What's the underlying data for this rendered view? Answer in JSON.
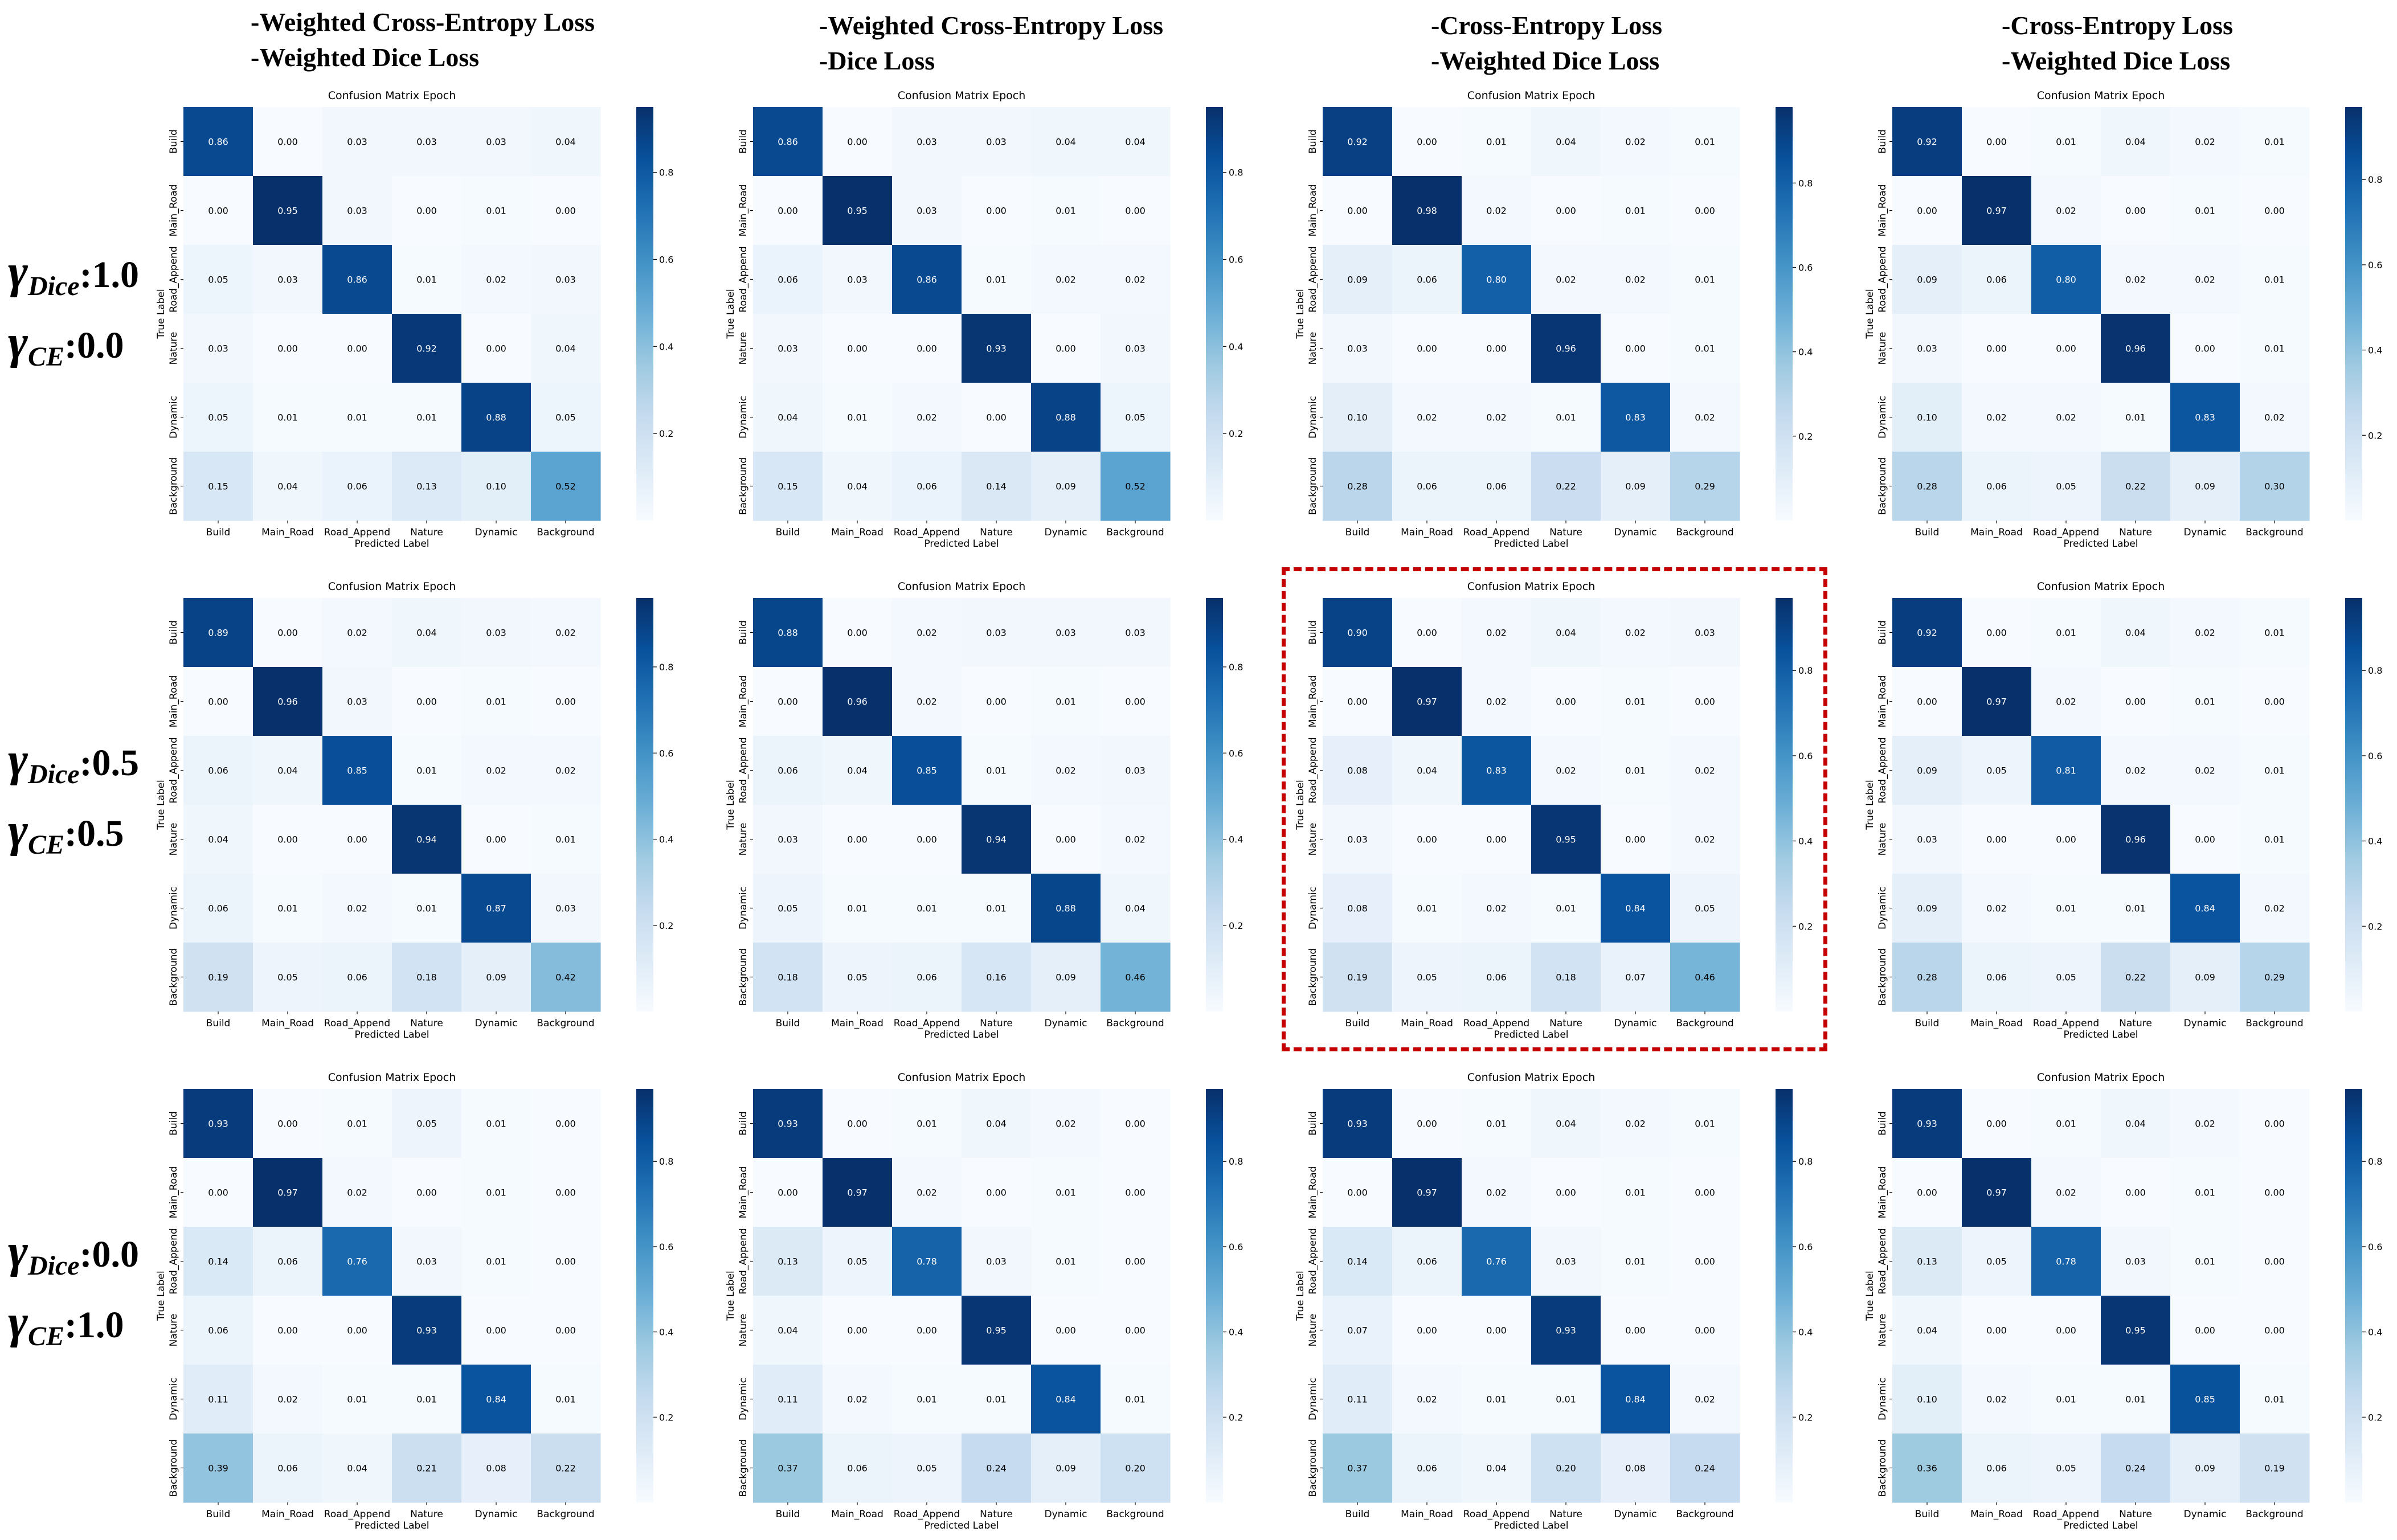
{
  "column_headers": [
    {
      "line1": "-Weighted Cross-Entropy Loss",
      "line2": "-Weighted Dice Loss"
    },
    {
      "line1": "-Weighted Cross-Entropy Loss",
      "line2": "-Dice Loss"
    },
    {
      "line1": "-Cross-Entropy Loss",
      "line2": "-Weighted Dice Loss"
    },
    {
      "line1": "-Cross-Entropy Loss",
      "line2": "-Weighted Dice Loss"
    }
  ],
  "row_headers": [
    {
      "gamma": "γ",
      "dice_sub": "Dice",
      "dice_value": ":1.0",
      "ce_sub": "CE",
      "ce_value": ":0.0"
    },
    {
      "gamma": "γ",
      "dice_sub": "Dice",
      "dice_value": ":0.5",
      "ce_sub": "CE",
      "ce_value": ":0.5"
    },
    {
      "gamma": "γ",
      "dice_sub": "Dice",
      "dice_value": ":0.0",
      "ce_sub": "CE",
      "ce_value": ":1.0"
    }
  ],
  "colormap": {
    "name": "Blues",
    "low": "#f7fbff",
    "high": "#08306b",
    "text_dark": "#000000",
    "text_light": "#ffffff"
  },
  "chart_data": [
    {
      "type": "heatmap",
      "title": "Confusion Matrix Epoch",
      "xlabel": "Predicted Label",
      "ylabel": "True Label",
      "categories": [
        "Build",
        "Main_Road",
        "Road_Append",
        "Nature",
        "Dynamic",
        "Background"
      ],
      "colorbar_ticks": [
        "0.2",
        "0.4",
        "0.6",
        "0.8"
      ],
      "vmin": 0,
      "vmax": 0.95,
      "values": [
        [
          0.86,
          0.0,
          0.03,
          0.03,
          0.03,
          0.04
        ],
        [
          0.0,
          0.95,
          0.03,
          0.0,
          0.01,
          0.0
        ],
        [
          0.05,
          0.03,
          0.86,
          0.01,
          0.02,
          0.03
        ],
        [
          0.03,
          0.0,
          0.0,
          0.92,
          0.0,
          0.04
        ],
        [
          0.05,
          0.01,
          0.01,
          0.01,
          0.88,
          0.05
        ],
        [
          0.15,
          0.04,
          0.06,
          0.13,
          0.1,
          0.52
        ]
      ]
    },
    {
      "type": "heatmap",
      "title": "Confusion Matrix Epoch",
      "xlabel": "Predicted Label",
      "ylabel": "True Label",
      "categories": [
        "Build",
        "Main_Road",
        "Road_Append",
        "Nature",
        "Dynamic",
        "Background"
      ],
      "colorbar_ticks": [
        "0.2",
        "0.4",
        "0.6",
        "0.8"
      ],
      "vmin": 0,
      "vmax": 0.95,
      "values": [
        [
          0.86,
          0.0,
          0.03,
          0.03,
          0.04,
          0.04
        ],
        [
          0.0,
          0.95,
          0.03,
          0.0,
          0.01,
          0.0
        ],
        [
          0.06,
          0.03,
          0.86,
          0.01,
          0.02,
          0.02
        ],
        [
          0.03,
          0.0,
          0.0,
          0.93,
          0.0,
          0.03
        ],
        [
          0.04,
          0.01,
          0.02,
          0.0,
          0.88,
          0.05
        ],
        [
          0.15,
          0.04,
          0.06,
          0.14,
          0.09,
          0.52
        ]
      ]
    },
    {
      "type": "heatmap",
      "title": "Confusion Matrix Epoch",
      "xlabel": "Predicted Label",
      "ylabel": "True Label",
      "categories": [
        "Build",
        "Main_Road",
        "Road_Append",
        "Nature",
        "Dynamic",
        "Background"
      ],
      "colorbar_ticks": [
        "0.2",
        "0.4",
        "0.6",
        "0.8"
      ],
      "vmin": 0,
      "vmax": 0.98,
      "values": [
        [
          0.92,
          0.0,
          0.01,
          0.04,
          0.02,
          0.01
        ],
        [
          0.0,
          0.98,
          0.02,
          0.0,
          0.01,
          0.0
        ],
        [
          0.09,
          0.06,
          0.8,
          0.02,
          0.02,
          0.01
        ],
        [
          0.03,
          0.0,
          0.0,
          0.96,
          0.0,
          0.01
        ],
        [
          0.1,
          0.02,
          0.02,
          0.01,
          0.83,
          0.02
        ],
        [
          0.28,
          0.06,
          0.06,
          0.22,
          0.09,
          0.29
        ]
      ]
    },
    {
      "type": "heatmap",
      "title": "Confusion Matrix Epoch",
      "xlabel": "Predicted Label",
      "ylabel": "True Label",
      "categories": [
        "Build",
        "Main_Road",
        "Road_Append",
        "Nature",
        "Dynamic",
        "Background"
      ],
      "colorbar_ticks": [
        "0.2",
        "0.4",
        "0.6",
        "0.8"
      ],
      "vmin": 0,
      "vmax": 0.97,
      "values": [
        [
          0.92,
          0.0,
          0.01,
          0.04,
          0.02,
          0.01
        ],
        [
          0.0,
          0.97,
          0.02,
          0.0,
          0.01,
          0.0
        ],
        [
          0.09,
          0.06,
          0.8,
          0.02,
          0.02,
          0.01
        ],
        [
          0.03,
          0.0,
          0.0,
          0.96,
          0.0,
          0.01
        ],
        [
          0.1,
          0.02,
          0.02,
          0.01,
          0.83,
          0.02
        ],
        [
          0.28,
          0.06,
          0.05,
          0.22,
          0.09,
          0.3
        ]
      ]
    },
    {
      "type": "heatmap",
      "title": "Confusion Matrix Epoch",
      "xlabel": "Predicted Label",
      "ylabel": "True Label",
      "categories": [
        "Build",
        "Main_Road",
        "Road_Append",
        "Nature",
        "Dynamic",
        "Background"
      ],
      "colorbar_ticks": [
        "0.2",
        "0.4",
        "0.6",
        "0.8"
      ],
      "vmin": 0,
      "vmax": 0.96,
      "values": [
        [
          0.89,
          0.0,
          0.02,
          0.04,
          0.03,
          0.02
        ],
        [
          0.0,
          0.96,
          0.03,
          0.0,
          0.01,
          0.0
        ],
        [
          0.06,
          0.04,
          0.85,
          0.01,
          0.02,
          0.02
        ],
        [
          0.04,
          0.0,
          0.0,
          0.94,
          0.0,
          0.01
        ],
        [
          0.06,
          0.01,
          0.02,
          0.01,
          0.87,
          0.03
        ],
        [
          0.19,
          0.05,
          0.06,
          0.18,
          0.09,
          0.42
        ]
      ]
    },
    {
      "type": "heatmap",
      "title": "Confusion Matrix Epoch",
      "xlabel": "Predicted Label",
      "ylabel": "True Label",
      "categories": [
        "Build",
        "Main_Road",
        "Road_Append",
        "Nature",
        "Dynamic",
        "Background"
      ],
      "colorbar_ticks": [
        "0.2",
        "0.4",
        "0.6",
        "0.8"
      ],
      "vmin": 0,
      "vmax": 0.96,
      "values": [
        [
          0.88,
          0.0,
          0.02,
          0.03,
          0.03,
          0.03
        ],
        [
          0.0,
          0.96,
          0.02,
          0.0,
          0.01,
          0.0
        ],
        [
          0.06,
          0.04,
          0.85,
          0.01,
          0.02,
          0.03
        ],
        [
          0.03,
          0.0,
          0.0,
          0.94,
          0.0,
          0.02
        ],
        [
          0.05,
          0.01,
          0.01,
          0.01,
          0.88,
          0.04
        ],
        [
          0.18,
          0.05,
          0.06,
          0.16,
          0.09,
          0.46
        ]
      ]
    },
    {
      "type": "heatmap",
      "title": "Confusion Matrix Epoch",
      "xlabel": "Predicted Label",
      "ylabel": "True Label",
      "categories": [
        "Build",
        "Main_Road",
        "Road_Append",
        "Nature",
        "Dynamic",
        "Background"
      ],
      "colorbar_ticks": [
        "0.2",
        "0.4",
        "0.6",
        "0.8"
      ],
      "vmin": 0,
      "vmax": 0.97,
      "values": [
        [
          0.9,
          0.0,
          0.02,
          0.04,
          0.02,
          0.03
        ],
        [
          0.0,
          0.97,
          0.02,
          0.0,
          0.01,
          0.0
        ],
        [
          0.08,
          0.04,
          0.83,
          0.02,
          0.01,
          0.02
        ],
        [
          0.03,
          0.0,
          0.0,
          0.95,
          0.0,
          0.02
        ],
        [
          0.08,
          0.01,
          0.02,
          0.01,
          0.84,
          0.05
        ],
        [
          0.19,
          0.05,
          0.06,
          0.18,
          0.07,
          0.46
        ]
      ]
    },
    {
      "type": "heatmap",
      "title": "Confusion Matrix Epoch",
      "xlabel": "Predicted Label",
      "ylabel": "True Label",
      "categories": [
        "Build",
        "Main_Road",
        "Road_Append",
        "Nature",
        "Dynamic",
        "Background"
      ],
      "colorbar_ticks": [
        "0.2",
        "0.4",
        "0.6",
        "0.8"
      ],
      "vmin": 0,
      "vmax": 0.97,
      "values": [
        [
          0.92,
          0.0,
          0.01,
          0.04,
          0.02,
          0.01
        ],
        [
          0.0,
          0.97,
          0.02,
          0.0,
          0.01,
          0.0
        ],
        [
          0.09,
          0.05,
          0.81,
          0.02,
          0.02,
          0.01
        ],
        [
          0.03,
          0.0,
          0.0,
          0.96,
          0.0,
          0.01
        ],
        [
          0.09,
          0.02,
          0.01,
          0.01,
          0.84,
          0.02
        ],
        [
          0.28,
          0.06,
          0.05,
          0.22,
          0.09,
          0.29
        ]
      ]
    },
    {
      "type": "heatmap",
      "title": "Confusion Matrix Epoch",
      "xlabel": "Predicted Label",
      "ylabel": "True Label",
      "categories": [
        "Build",
        "Main_Road",
        "Road_Append",
        "Nature",
        "Dynamic",
        "Background"
      ],
      "colorbar_ticks": [
        "0.2",
        "0.4",
        "0.6",
        "0.8"
      ],
      "vmin": 0,
      "vmax": 0.97,
      "values": [
        [
          0.93,
          0.0,
          0.01,
          0.05,
          0.01,
          0.0
        ],
        [
          0.0,
          0.97,
          0.02,
          0.0,
          0.01,
          0.0
        ],
        [
          0.14,
          0.06,
          0.76,
          0.03,
          0.01,
          0.0
        ],
        [
          0.06,
          0.0,
          0.0,
          0.93,
          0.0,
          0.0
        ],
        [
          0.11,
          0.02,
          0.01,
          0.01,
          0.84,
          0.01
        ],
        [
          0.39,
          0.06,
          0.04,
          0.21,
          0.08,
          0.22
        ]
      ]
    },
    {
      "type": "heatmap",
      "title": "Confusion Matrix Epoch",
      "xlabel": "Predicted Label",
      "ylabel": "True Label",
      "categories": [
        "Build",
        "Main_Road",
        "Road_Append",
        "Nature",
        "Dynamic",
        "Background"
      ],
      "colorbar_ticks": [
        "0.2",
        "0.4",
        "0.6",
        "0.8"
      ],
      "vmin": 0,
      "vmax": 0.97,
      "values": [
        [
          0.93,
          0.0,
          0.01,
          0.04,
          0.02,
          0.0
        ],
        [
          0.0,
          0.97,
          0.02,
          0.0,
          0.01,
          0.0
        ],
        [
          0.13,
          0.05,
          0.78,
          0.03,
          0.01,
          0.0
        ],
        [
          0.04,
          0.0,
          0.0,
          0.95,
          0.0,
          0.0
        ],
        [
          0.11,
          0.02,
          0.01,
          0.01,
          0.84,
          0.01
        ],
        [
          0.37,
          0.06,
          0.05,
          0.24,
          0.09,
          0.2
        ]
      ]
    },
    {
      "type": "heatmap",
      "title": "Confusion Matrix Epoch",
      "xlabel": "Predicted Label",
      "ylabel": "True Label",
      "categories": [
        "Build",
        "Main_Road",
        "Road_Append",
        "Nature",
        "Dynamic",
        "Background"
      ],
      "colorbar_ticks": [
        "0.2",
        "0.4",
        "0.6",
        "0.8"
      ],
      "vmin": 0,
      "vmax": 0.97,
      "values": [
        [
          0.93,
          0.0,
          0.01,
          0.04,
          0.02,
          0.01
        ],
        [
          0.0,
          0.97,
          0.02,
          0.0,
          0.01,
          0.0
        ],
        [
          0.14,
          0.06,
          0.76,
          0.03,
          0.01,
          0.0
        ],
        [
          0.07,
          0.0,
          0.0,
          0.93,
          0.0,
          0.0
        ],
        [
          0.11,
          0.02,
          0.01,
          0.01,
          0.84,
          0.02
        ],
        [
          0.37,
          0.06,
          0.04,
          0.2,
          0.08,
          0.24
        ]
      ]
    },
    {
      "type": "heatmap",
      "title": "Confusion Matrix Epoch",
      "xlabel": "Predicted Label",
      "ylabel": "True Label",
      "categories": [
        "Build",
        "Main_Road",
        "Road_Append",
        "Nature",
        "Dynamic",
        "Background"
      ],
      "colorbar_ticks": [
        "0.2",
        "0.4",
        "0.6",
        "0.8"
      ],
      "vmin": 0,
      "vmax": 0.97,
      "values": [
        [
          0.93,
          0.0,
          0.01,
          0.04,
          0.02,
          0.0
        ],
        [
          0.0,
          0.97,
          0.02,
          0.0,
          0.01,
          0.0
        ],
        [
          0.13,
          0.05,
          0.78,
          0.03,
          0.01,
          0.0
        ],
        [
          0.04,
          0.0,
          0.0,
          0.95,
          0.0,
          0.0
        ],
        [
          0.1,
          0.02,
          0.01,
          0.01,
          0.85,
          0.01
        ],
        [
          0.36,
          0.06,
          0.05,
          0.24,
          0.09,
          0.19
        ]
      ]
    }
  ]
}
